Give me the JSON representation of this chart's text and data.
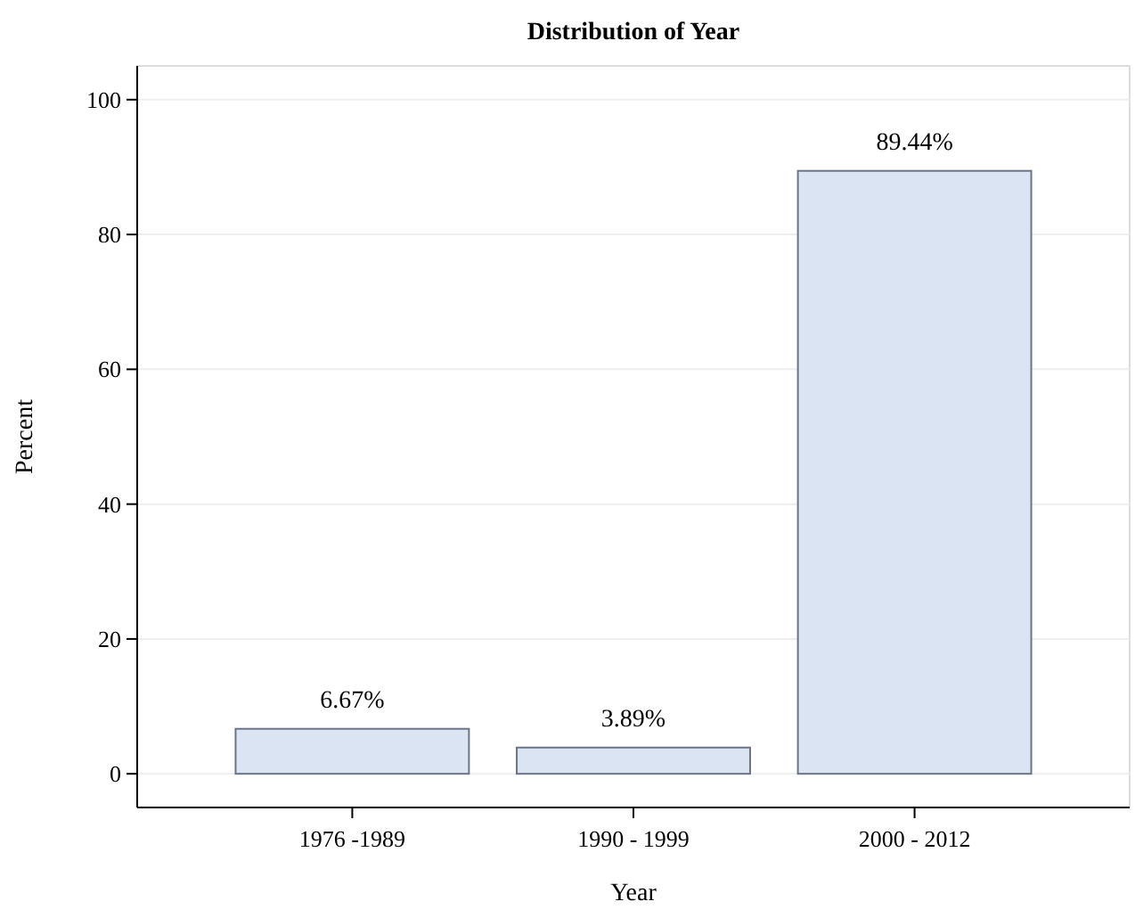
{
  "chart_data": {
    "type": "bar",
    "title": "Distribution of Year",
    "xlabel": "Year",
    "ylabel": "Percent",
    "categories": [
      "1976 -1989",
      "1990 - 1999",
      "2000 - 2012"
    ],
    "values": [
      6.67,
      3.89,
      89.44
    ],
    "color": "#dbe4f2",
    "value_labels": [
      "6.67%",
      "3.89%",
      "89.44%"
    ],
    "ylim": [
      -5,
      105
    ],
    "yticks": [
      0,
      20,
      40,
      60,
      80,
      100
    ],
    "grid": "y"
  }
}
